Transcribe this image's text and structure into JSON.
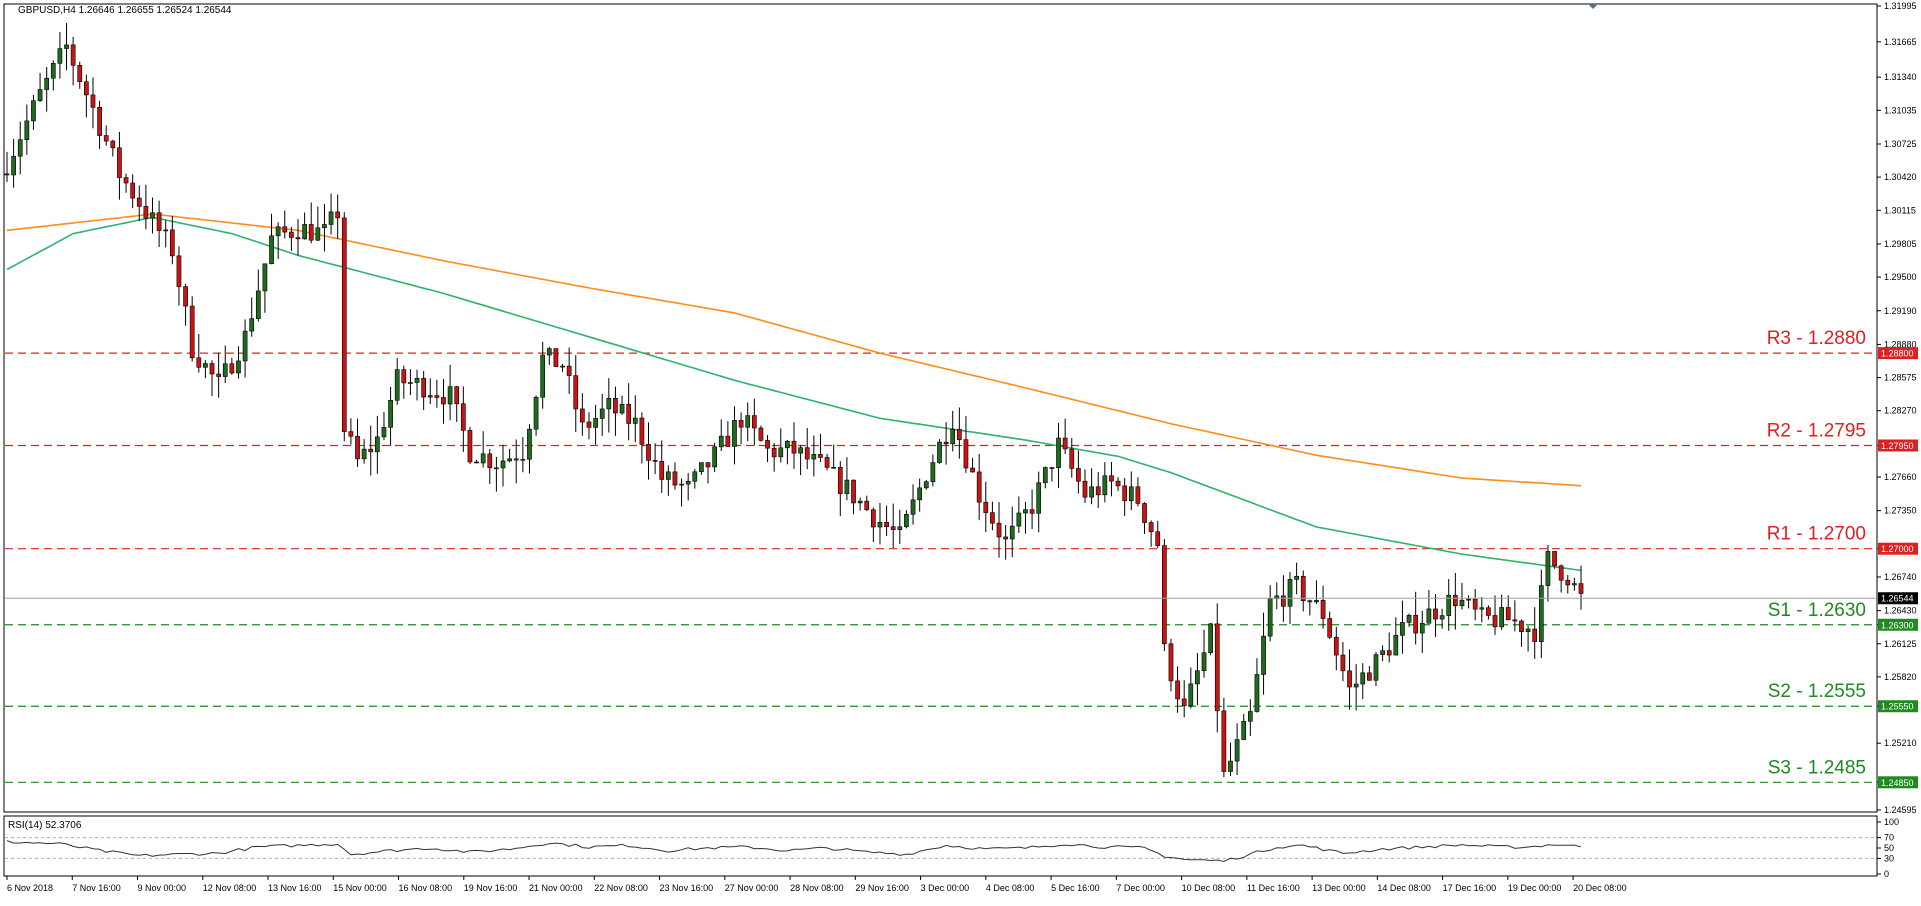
{
  "header": {
    "symbol_label": "GBPUSD,H4  1.26646 1.26655 1.26524 1.26544"
  },
  "rsi_header": {
    "label": "RSI(14) 52.3706"
  },
  "colors": {
    "bull": "#1e6b1e",
    "bear": "#c81414",
    "ma_slow": "#ff8c1a",
    "ma_fast": "#2db36b",
    "resistance": "#e02020",
    "support": "#1f8a1f",
    "current_price": "#000000"
  },
  "chart_data": {
    "type": "line",
    "title": "",
    "instrument": "GBPUSD",
    "timeframe": "H4",
    "ylim": [
      1.24595,
      1.31995
    ],
    "y_ticks": [
      "1.31995",
      "1.31665",
      "1.31340",
      "1.31035",
      "1.30725",
      "1.30420",
      "1.30115",
      "1.29805",
      "1.29500",
      "1.29190",
      "1.28880",
      "1.28575",
      "1.28270",
      "1.27950",
      "1.27660",
      "1.27350",
      "1.27000",
      "1.26740",
      "1.26544",
      "1.26430",
      "1.26300",
      "1.26125",
      "1.25820",
      "1.25550",
      "1.25210",
      "1.24850",
      "1.24595"
    ],
    "x_ticks": [
      "6 Nov 2018",
      "7 Nov 16:00",
      "9 Nov 00:00",
      "12 Nov 08:00",
      "13 Nov 16:00",
      "15 Nov 00:00",
      "16 Nov 08:00",
      "19 Nov 16:00",
      "21 Nov 00:00",
      "22 Nov 08:00",
      "23 Nov 16:00",
      "27 Nov 00:00",
      "28 Nov 08:00",
      "29 Nov 16:00",
      "3 Dec 00:00",
      "4 Dec 08:00",
      "5 Dec 16:00",
      "7 Dec 00:00",
      "10 Dec 08:00",
      "11 Dec 16:00",
      "13 Dec 00:00",
      "14 Dec 08:00",
      "17 Dec 16:00",
      "19 Dec 00:00",
      "20 Dec 08:00"
    ],
    "grid": false,
    "current_price": 1.26544,
    "close_path": [
      [
        0,
        1.3055
      ],
      [
        5,
        1.3118
      ],
      [
        9,
        1.3162
      ],
      [
        13,
        1.3105
      ],
      [
        17,
        1.3045
      ],
      [
        21,
        1.301
      ],
      [
        25,
        1.2975
      ],
      [
        28,
        1.2885
      ],
      [
        32,
        1.285
      ],
      [
        36,
        1.2895
      ],
      [
        40,
        1.2985
      ],
      [
        44,
        1.2995
      ],
      [
        48,
        1.299
      ],
      [
        50,
        1.301
      ],
      [
        51,
        1.281
      ],
      [
        53,
        1.278
      ],
      [
        56,
        1.28
      ],
      [
        59,
        1.2855
      ],
      [
        63,
        1.285
      ],
      [
        67,
        1.284
      ],
      [
        70,
        1.279
      ],
      [
        74,
        1.278
      ],
      [
        78,
        1.279
      ],
      [
        81,
        1.2875
      ],
      [
        84,
        1.287
      ],
      [
        87,
        1.281
      ],
      [
        91,
        1.283
      ],
      [
        95,
        1.2815
      ],
      [
        99,
        1.2765
      ],
      [
        103,
        1.2755
      ],
      [
        107,
        1.2785
      ],
      [
        111,
        1.282
      ],
      [
        115,
        1.279
      ],
      [
        119,
        1.279
      ],
      [
        123,
        1.2775
      ],
      [
        127,
        1.2755
      ],
      [
        131,
        1.273
      ],
      [
        135,
        1.271
      ],
      [
        139,
        1.277
      ],
      [
        143,
        1.282
      ],
      [
        147,
        1.275
      ],
      [
        151,
        1.2705
      ],
      [
        155,
        1.274
      ],
      [
        159,
        1.2795
      ],
      [
        163,
        1.275
      ],
      [
        167,
        1.276
      ],
      [
        171,
        1.2745
      ],
      [
        174,
        1.2705
      ],
      [
        175,
        1.2605
      ],
      [
        178,
        1.255
      ],
      [
        182,
        1.262
      ],
      [
        184,
        1.249
      ],
      [
        188,
        1.2545
      ],
      [
        191,
        1.265
      ],
      [
        195,
        1.2665
      ],
      [
        199,
        1.264
      ],
      [
        203,
        1.257
      ],
      [
        207,
        1.2595
      ],
      [
        211,
        1.2625
      ],
      [
        215,
        1.264
      ],
      [
        219,
        1.2655
      ],
      [
        223,
        1.2635
      ],
      [
        227,
        1.2635
      ],
      [
        231,
        1.2625
      ],
      [
        233,
        1.269
      ],
      [
        236,
        1.2675
      ],
      [
        238,
        1.2654
      ]
    ],
    "series": [
      {
        "name": "",
        "style": "moving-average-slow",
        "points": [
          [
            0,
            1.2993
          ],
          [
            22,
            1.3008
          ],
          [
            44,
            1.2993
          ],
          [
            66,
            1.2965
          ],
          [
            88,
            1.294
          ],
          [
            110,
            1.2917
          ],
          [
            132,
            1.288
          ],
          [
            154,
            1.2848
          ],
          [
            176,
            1.2815
          ],
          [
            198,
            1.2786
          ],
          [
            220,
            1.2765
          ],
          [
            238,
            1.2758
          ]
        ]
      },
      {
        "name": "",
        "style": "moving-average-fast",
        "points": [
          [
            0,
            1.2957
          ],
          [
            10,
            1.299
          ],
          [
            22,
            1.3005
          ],
          [
            34,
            1.299
          ],
          [
            44,
            1.297
          ],
          [
            66,
            1.2935
          ],
          [
            88,
            1.2895
          ],
          [
            110,
            1.2855
          ],
          [
            132,
            1.282
          ],
          [
            154,
            1.28
          ],
          [
            168,
            1.2785
          ],
          [
            176,
            1.277
          ],
          [
            198,
            1.272
          ],
          [
            220,
            1.2695
          ],
          [
            238,
            1.268
          ]
        ]
      }
    ],
    "levels": [
      {
        "label": "R3 - 1.2880",
        "value": 1.288,
        "tag": "1.28800",
        "kind": "resistance"
      },
      {
        "label": "R2 - 1.2795",
        "value": 1.2795,
        "tag": "1.27950",
        "kind": "resistance"
      },
      {
        "label": "R1 - 1.2700",
        "value": 1.27,
        "tag": "1.27000",
        "kind": "resistance"
      },
      {
        "label": "S1 - 1.2630",
        "value": 1.263,
        "tag": "1.26300",
        "kind": "support"
      },
      {
        "label": "S2 - 1.2555",
        "value": 1.2555,
        "tag": "1.25550",
        "kind": "support"
      },
      {
        "label": "S3 - 1.2485",
        "value": 1.2485,
        "tag": "1.24850",
        "kind": "support"
      }
    ],
    "rsi": {
      "ylim": [
        0,
        100
      ],
      "y_ticks": [
        "100",
        "70",
        "50",
        "30",
        "0"
      ],
      "levels": [
        70,
        30
      ],
      "value": 52.3706,
      "points": [
        [
          0,
          62
        ],
        [
          8,
          58
        ],
        [
          14,
          45
        ],
        [
          20,
          35
        ],
        [
          26,
          38
        ],
        [
          32,
          40
        ],
        [
          38,
          52
        ],
        [
          44,
          55
        ],
        [
          50,
          58
        ],
        [
          52,
          38
        ],
        [
          58,
          45
        ],
        [
          64,
          50
        ],
        [
          70,
          42
        ],
        [
          76,
          48
        ],
        [
          82,
          60
        ],
        [
          88,
          52
        ],
        [
          94,
          55
        ],
        [
          100,
          45
        ],
        [
          106,
          50
        ],
        [
          112,
          52
        ],
        [
          118,
          45
        ],
        [
          124,
          50
        ],
        [
          130,
          42
        ],
        [
          136,
          38
        ],
        [
          142,
          55
        ],
        [
          148,
          48
        ],
        [
          154,
          50
        ],
        [
          160,
          58
        ],
        [
          166,
          52
        ],
        [
          172,
          50
        ],
        [
          175,
          35
        ],
        [
          178,
          28
        ],
        [
          184,
          25
        ],
        [
          188,
          38
        ],
        [
          192,
          52
        ],
        [
          196,
          55
        ],
        [
          202,
          40
        ],
        [
          208,
          48
        ],
        [
          214,
          52
        ],
        [
          220,
          56
        ],
        [
          226,
          52
        ],
        [
          230,
          52
        ],
        [
          234,
          57
        ],
        [
          238,
          52.37
        ]
      ]
    }
  }
}
